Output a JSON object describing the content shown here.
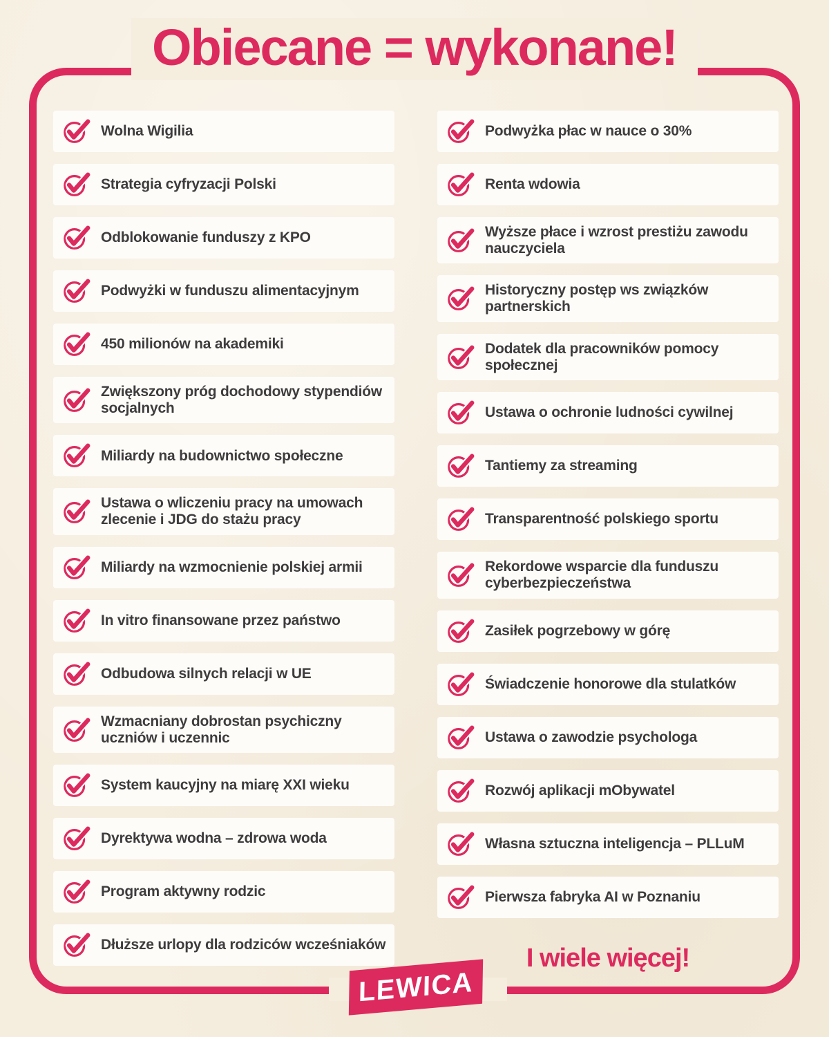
{
  "poster": {
    "title": "Obiecane = wykonane!",
    "footer_more": "I wiele więcej!",
    "logo": "LEWICA"
  },
  "icons": {
    "row_icon": "check-circle-icon"
  },
  "colors": {
    "accent": "#DD2A5E",
    "background": "#F5EDDE",
    "card": "#FDFCF9",
    "text": "#3E3C3C",
    "logo_text": "#FFFFFF"
  },
  "columns": {
    "left": [
      {
        "label": "Wolna Wigilia"
      },
      {
        "label": "Strategia cyfryzacji Polski"
      },
      {
        "label": "Odblokowanie funduszy z KPO"
      },
      {
        "label": "Podwyżki w funduszu alimentacyjnym"
      },
      {
        "label": "450 milionów na akademiki"
      },
      {
        "label": "Zwiększony próg dochodowy stypendiów\nsocjalnych"
      },
      {
        "label": "Miliardy na budownictwo społeczne"
      },
      {
        "label": "Ustawa o wliczeniu pracy na umowach\nzlecenie i JDG do stażu pracy"
      },
      {
        "label": "Miliardy na wzmocnienie polskiej armii"
      },
      {
        "label": "In vitro finansowane przez państwo"
      },
      {
        "label": "Odbudowa silnych relacji w UE"
      },
      {
        "label": "Wzmacniany dobrostan psychiczny\nuczniów i uczennic"
      },
      {
        "label": "System kaucyjny na miarę XXI wieku"
      },
      {
        "label": "Dyrektywa wodna – zdrowa woda"
      },
      {
        "label": "Program aktywny rodzic"
      },
      {
        "label": "Dłuższe urlopy dla rodziców wcześniaków"
      }
    ],
    "right": [
      {
        "label": "Podwyżka płac w nauce o 30%"
      },
      {
        "label": "Renta wdowia"
      },
      {
        "label": "Wyższe płace i wzrost prestiżu zawodu\nnauczyciela"
      },
      {
        "label": "Historyczny postęp ws związków\npartnerskich"
      },
      {
        "label": "Dodatek dla pracowników pomocy\nspołecznej"
      },
      {
        "label": "Ustawa o ochronie ludności cywilnej"
      },
      {
        "label": "Tantiemy za streaming"
      },
      {
        "label": "Transparentność polskiego sportu"
      },
      {
        "label": "Rekordowe wsparcie dla funduszu\ncyberbezpieczeństwa"
      },
      {
        "label": "Zasiłek pogrzebowy w górę"
      },
      {
        "label": "Świadczenie honorowe dla stulatków"
      },
      {
        "label": "Ustawa o zawodzie psychologa"
      },
      {
        "label": "Rozwój aplikacji mObywatel"
      },
      {
        "label": "Własna sztuczna inteligencja – PLLuM"
      },
      {
        "label": "Pierwsza fabryka AI w Poznaniu"
      }
    ]
  }
}
